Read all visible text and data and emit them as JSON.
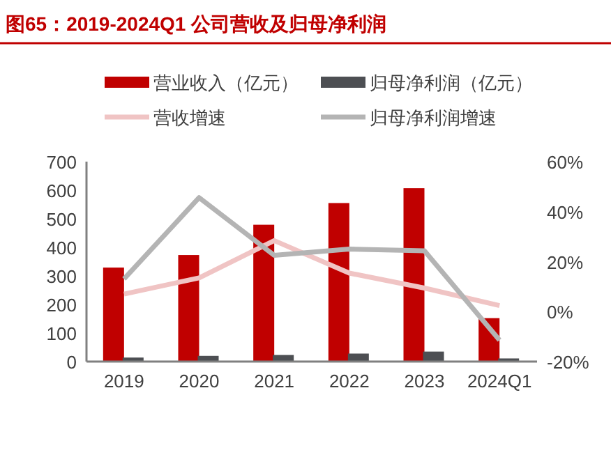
{
  "chart_data": {
    "type": "bar",
    "title": "图65：2019-2024Q1 公司营收及归母净利润",
    "categories": [
      "2019",
      "2020",
      "2021",
      "2022",
      "2023",
      "2024Q1"
    ],
    "series": [
      {
        "name": "营业收入（亿元）",
        "color": "#c00000",
        "values": [
          329,
          373,
          479,
          555,
          607,
          152
        ]
      },
      {
        "name": "归母净利润（亿元）",
        "color": "#4d4f53",
        "values": [
          14,
          20,
          23,
          28,
          35,
          11
        ]
      },
      {
        "name": "营收增速",
        "type": "line",
        "axis": "y2",
        "color": "#f0c4c4",
        "values": [
          7.0,
          13.5,
          28.4,
          15.4,
          9.4,
          2.4
        ]
      },
      {
        "name": "归母净利润增速",
        "type": "line",
        "axis": "y2",
        "color": "#b4b4b4",
        "values": [
          13.1,
          45.6,
          22.5,
          25.0,
          24.3,
          -11.4
        ]
      }
    ],
    "ylim": [
      0,
      700
    ],
    "yticks": [
      0,
      100,
      200,
      300,
      400,
      500,
      600,
      700
    ],
    "y2lim": [
      -20,
      60
    ],
    "y2ticks": [
      {
        "value": -20,
        "label": "-20%"
      },
      {
        "value": 0,
        "label": "0%"
      },
      {
        "value": 20,
        "label": "20%"
      },
      {
        "value": 40,
        "label": "40%"
      },
      {
        "value": 60,
        "label": "60%"
      }
    ],
    "legend": "top",
    "grid": false,
    "marker": "none",
    "line_style": "solid"
  }
}
